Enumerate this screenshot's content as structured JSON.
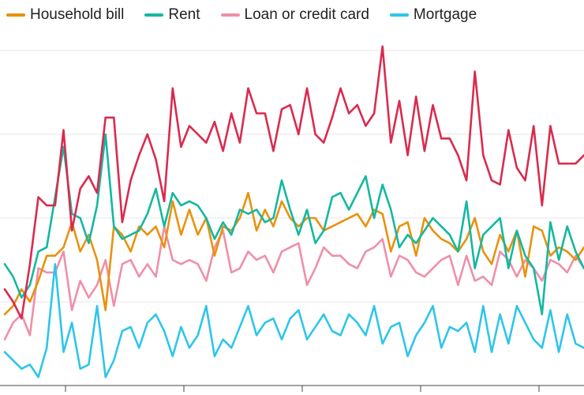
{
  "chart_data": {
    "type": "line",
    "title": "",
    "xlabel": "",
    "ylabel": "",
    "ylim": [
      0,
      9
    ],
    "grid": true,
    "legend_placement": "top-left",
    "x": [
      1,
      2,
      3,
      4,
      5,
      6,
      7,
      8,
      9,
      10,
      11,
      12,
      13,
      14,
      15,
      16,
      17,
      18,
      19,
      20,
      21,
      22,
      23,
      24,
      25,
      26,
      27,
      28,
      29,
      30,
      31,
      32,
      33,
      34,
      35,
      36,
      37,
      38,
      39,
      40,
      41,
      42,
      43,
      44,
      45,
      46,
      47,
      48,
      49,
      50,
      51,
      52,
      53,
      54,
      55,
      56,
      57,
      58,
      59,
      60,
      61,
      62,
      63,
      64,
      65,
      66,
      67,
      68,
      69,
      70
    ],
    "series": [
      {
        "name": "Household bill",
        "color": "#e8920f",
        "values": [
          0.85,
          0.95,
          1.15,
          1.0,
          1.25,
          1.55,
          1.55,
          1.65,
          1.95,
          1.6,
          1.8,
          1.5,
          0.9,
          1.9,
          1.8,
          1.6,
          1.9,
          1.8,
          1.9,
          1.65,
          2.2,
          1.8,
          2.1,
          1.8,
          2.0,
          1.55,
          1.9,
          1.85,
          2.0,
          2.3,
          1.85,
          2.1,
          1.9,
          2.2,
          2.0,
          1.9,
          2.0,
          2.0,
          1.85,
          1.9,
          1.95,
          2.0,
          2.05,
          1.9,
          2.1,
          2.05,
          1.6,
          1.9,
          1.95,
          1.55,
          2.0,
          1.85,
          1.75,
          1.7,
          1.6,
          1.75,
          2.0,
          1.6,
          1.45,
          1.8,
          1.6,
          1.85,
          1.3,
          1.9,
          1.85,
          1.55,
          1.65,
          1.6,
          1.5,
          1.65
        ]
      },
      {
        "name": "Rent",
        "color": "#14b8a0",
        "values": [
          1.45,
          1.3,
          1.05,
          1.2,
          1.6,
          1.65,
          2.25,
          2.85,
          2.05,
          2.0,
          1.7,
          2.15,
          3.0,
          1.9,
          1.75,
          1.8,
          1.85,
          2.05,
          2.35,
          1.9,
          2.3,
          2.15,
          2.2,
          2.15,
          2.0,
          1.75,
          1.95,
          1.8,
          2.1,
          2.05,
          2.1,
          1.95,
          2.0,
          2.45,
          2.1,
          1.8,
          2.1,
          1.7,
          1.85,
          2.25,
          2.3,
          2.1,
          2.3,
          2.5,
          2.0,
          2.4,
          2.1,
          1.65,
          1.8,
          1.7,
          1.85,
          2.0,
          1.9,
          1.8,
          1.6,
          2.2,
          1.4,
          1.8,
          1.9,
          2.0,
          1.4,
          1.85,
          1.55,
          1.4,
          0.85,
          1.95,
          1.5,
          1.9,
          1.6,
          1.4
        ]
      },
      {
        "name": "Loan or credit card",
        "color": "#ef8fa8",
        "values": [
          0.55,
          0.75,
          0.85,
          0.6,
          1.4,
          1.35,
          1.35,
          1.6,
          0.9,
          1.25,
          1.05,
          1.2,
          1.5,
          0.95,
          1.45,
          1.5,
          1.3,
          1.45,
          1.3,
          1.9,
          1.5,
          1.45,
          1.5,
          1.45,
          1.25,
          1.65,
          1.85,
          1.35,
          1.4,
          1.6,
          1.5,
          1.55,
          1.35,
          1.6,
          1.65,
          1.7,
          1.2,
          1.4,
          1.65,
          1.55,
          1.55,
          1.45,
          1.4,
          1.6,
          1.65,
          1.75,
          1.3,
          1.55,
          1.5,
          1.35,
          1.3,
          1.4,
          1.5,
          1.55,
          1.2,
          1.55,
          1.25,
          1.3,
          1.2,
          1.6,
          1.5,
          1.3,
          1.5,
          1.4,
          1.25,
          1.5,
          1.45,
          1.35,
          1.55,
          1.4
        ]
      },
      {
        "name": "Mortgage",
        "color": "#2ec5ea",
        "values": [
          0.4,
          0.3,
          0.2,
          0.25,
          0.1,
          0.45,
          1.45,
          0.4,
          0.75,
          0.2,
          0.25,
          0.95,
          0.1,
          0.3,
          0.65,
          0.7,
          0.45,
          0.75,
          0.85,
          0.65,
          0.35,
          0.7,
          0.45,
          0.6,
          0.95,
          0.35,
          0.55,
          0.45,
          0.7,
          0.95,
          0.6,
          0.75,
          0.8,
          0.55,
          0.8,
          0.9,
          0.55,
          0.7,
          0.85,
          0.65,
          0.6,
          0.85,
          0.75,
          0.6,
          0.95,
          0.5,
          0.7,
          0.75,
          0.35,
          0.6,
          0.75,
          0.95,
          0.45,
          0.7,
          0.65,
          0.75,
          0.4,
          0.95,
          0.4,
          0.85,
          0.5,
          0.95,
          0.75,
          0.55,
          0.45,
          0.9,
          0.4,
          0.85,
          0.5,
          0.45
        ]
      },
      {
        "name": "",
        "color": "#d92b4e",
        "values": [
          1.15,
          1.0,
          0.8,
          1.45,
          2.25,
          2.15,
          2.15,
          3.05,
          1.85,
          2.35,
          2.5,
          2.3,
          3.2,
          3.2,
          1.95,
          2.45,
          2.75,
          3.0,
          2.7,
          2.2,
          3.55,
          2.85,
          3.1,
          3.0,
          2.9,
          3.15,
          2.8,
          3.25,
          2.9,
          3.55,
          3.25,
          3.25,
          2.8,
          3.3,
          3.35,
          3.0,
          3.55,
          3.0,
          2.9,
          3.2,
          3.55,
          3.25,
          3.35,
          3.1,
          3.25,
          4.05,
          2.9,
          3.4,
          2.75,
          3.45,
          2.8,
          3.35,
          2.95,
          2.95,
          2.75,
          2.45,
          3.75,
          2.75,
          2.45,
          2.4,
          3.05,
          2.6,
          2.45,
          3.1,
          2.15,
          3.1,
          2.65,
          2.65,
          2.65,
          2.75
        ]
      }
    ]
  }
}
